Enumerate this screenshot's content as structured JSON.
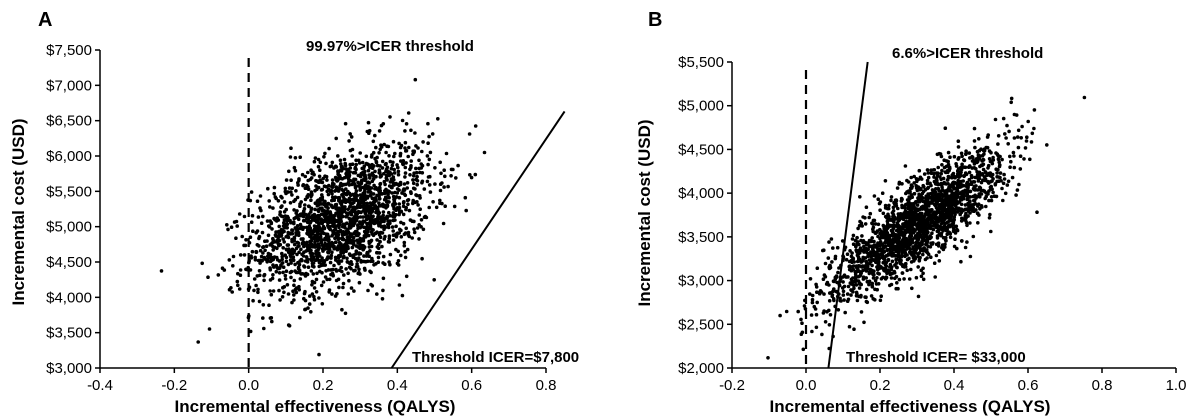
{
  "chart_data": [
    {
      "panel_label": "A",
      "type": "scatter",
      "xlabel": "Incremental effectiveness (QALYS)",
      "ylabel": "Incremental cost (USD)",
      "xlim": [
        -0.4,
        0.8
      ],
      "ylim": [
        3000,
        7500
      ],
      "x_ticks": [
        "-0.4",
        "-0.2",
        "0.0",
        "0.2",
        "0.4",
        "0.6",
        "0.8"
      ],
      "y_ticks": [
        "$3,000",
        "$3,500",
        "$4,000",
        "$4,500",
        "$5,000",
        "$5,500",
        "$6,000",
        "$6,500",
        "$7,000",
        "$7,500"
      ],
      "reference_line_x": 0.0,
      "threshold_line": {
        "slope": 7800,
        "intercept": 0
      },
      "annotations": [
        "99.97%>ICER threshold",
        "Threshold ICER=$7,800"
      ],
      "points_summary": {
        "n": 2000,
        "mean_x": 0.25,
        "sd_x": 0.12,
        "mean_y": 5100,
        "sd_y": 520,
        "correlation": 0.45
      },
      "grid": false
    },
    {
      "panel_label": "B",
      "type": "scatter",
      "xlabel": "Incremental effectiveness (QALYS)",
      "ylabel": "Incremental cost (USD)",
      "xlim": [
        -0.2,
        1.0
      ],
      "ylim": [
        2000,
        5500
      ],
      "x_ticks": [
        "-0.2",
        "0.0",
        "0.2",
        "0.4",
        "0.6",
        "0.8",
        "1.0"
      ],
      "y_ticks": [
        "$2,000",
        "$2,500",
        "$3,000",
        "$3,500",
        "$4,000",
        "$4,500",
        "$5,000",
        "$5,500"
      ],
      "reference_line_x": 0.0,
      "threshold_line": {
        "slope": 33000,
        "intercept": 0
      },
      "annotations": [
        "6.6%>ICER threshold",
        "Threshold ICER= $33,000"
      ],
      "points_summary": {
        "n": 2000,
        "mean_x": 0.3,
        "sd_x": 0.12,
        "mean_y": 3650,
        "sd_y": 430,
        "correlation": 0.82
      },
      "grid": false
    }
  ]
}
